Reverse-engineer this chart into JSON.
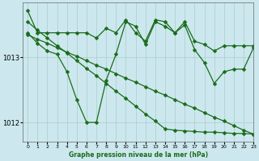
{
  "background_color": "#cce8ee",
  "grid_color": "#aacccc",
  "line_color": "#1a6b1a",
  "title": "Graphe pression niveau de la mer (hPa)",
  "ylim": [
    1011.7,
    1013.85
  ],
  "xlim": [
    -0.5,
    23
  ],
  "yticks": [
    1012,
    1013
  ],
  "xticks": [
    0,
    1,
    2,
    3,
    4,
    5,
    6,
    7,
    8,
    9,
    10,
    11,
    12,
    13,
    14,
    15,
    16,
    17,
    18,
    19,
    20,
    21,
    22,
    23
  ],
  "series_wavy": [
    1013.72,
    1013.38,
    1013.38,
    1013.38,
    1013.38,
    1013.38,
    1013.38,
    1013.3,
    1013.45,
    1013.38,
    1013.58,
    1013.38,
    1013.25,
    1013.58,
    1013.55,
    1013.38,
    1013.55,
    1013.25,
    1013.2,
    1013.1,
    1013.18,
    1013.18,
    1013.18,
    1013.18
  ],
  "series_dip": [
    1013.38,
    1013.22,
    1013.1,
    1013.05,
    1012.78,
    1012.35,
    1012.0,
    1012.0,
    1012.65,
    1013.05,
    1013.55,
    1013.48,
    1013.2,
    1013.55,
    1013.48,
    1013.38,
    1013.5,
    1013.12,
    1012.92,
    1012.6,
    1012.78,
    1012.82,
    1012.82,
    1013.15
  ],
  "series_line1": [
    1013.55,
    1013.42,
    1013.3,
    1013.18,
    1013.07,
    1012.95,
    1012.83,
    1012.72,
    1012.6,
    1012.48,
    1012.37,
    1012.25,
    1012.13,
    1012.02,
    1011.9,
    1011.88,
    1011.87,
    1011.86,
    1011.85,
    1011.85,
    1011.84,
    1011.83,
    1011.83,
    1011.82
  ],
  "series_line2": [
    1013.35,
    1013.28,
    1013.22,
    1013.15,
    1013.08,
    1013.02,
    1012.95,
    1012.88,
    1012.82,
    1012.75,
    1012.68,
    1012.62,
    1012.55,
    1012.48,
    1012.42,
    1012.35,
    1012.28,
    1012.22,
    1012.15,
    1012.08,
    1012.02,
    1011.95,
    1011.88,
    1011.82
  ],
  "marker_size": 2.5,
  "line_width": 0.9
}
